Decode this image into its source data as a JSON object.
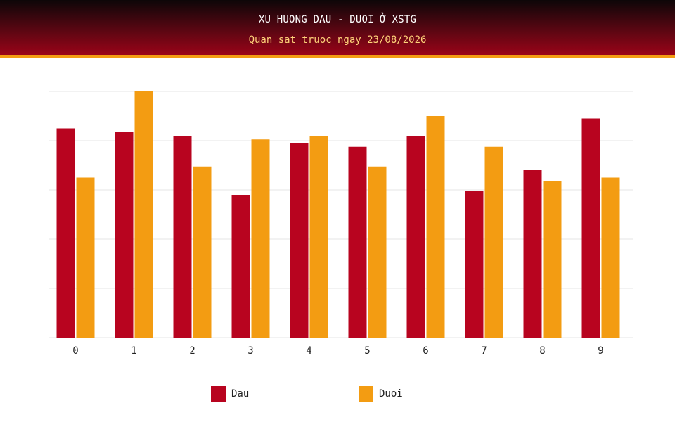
{
  "header": {
    "title": "XU HUONG DAU - DUOI Ở XSTG",
    "subtitle": "Quan sat truoc ngay 23/08/2026"
  },
  "colors": {
    "dau": "#b8041f",
    "duoi": "#f39c12",
    "grid": "#e6e6e6",
    "header_top": "#0d0608",
    "header_bottom": "#9a0418",
    "accent_line": "#f39c12"
  },
  "legend": [
    {
      "label": "Dau",
      "color": "#b8041f"
    },
    {
      "label": "Duoi",
      "color": "#f39c12"
    }
  ],
  "chart_data": {
    "type": "bar",
    "categories": [
      "0",
      "1",
      "2",
      "3",
      "4",
      "5",
      "6",
      "7",
      "8",
      "9"
    ],
    "series": [
      {
        "name": "Dau",
        "values": [
          17,
          16.7,
          16.4,
          11.6,
          15.8,
          15.5,
          16.4,
          11.9,
          13.6,
          17.8
        ]
      },
      {
        "name": "Duoi",
        "values": [
          13,
          20,
          13.9,
          16.1,
          16.4,
          13.9,
          18,
          15.5,
          12.7,
          13
        ]
      }
    ],
    "ylim": [
      0,
      20
    ],
    "y_ticks_shown": false,
    "grid": true,
    "legend_position": "bottom-center"
  }
}
